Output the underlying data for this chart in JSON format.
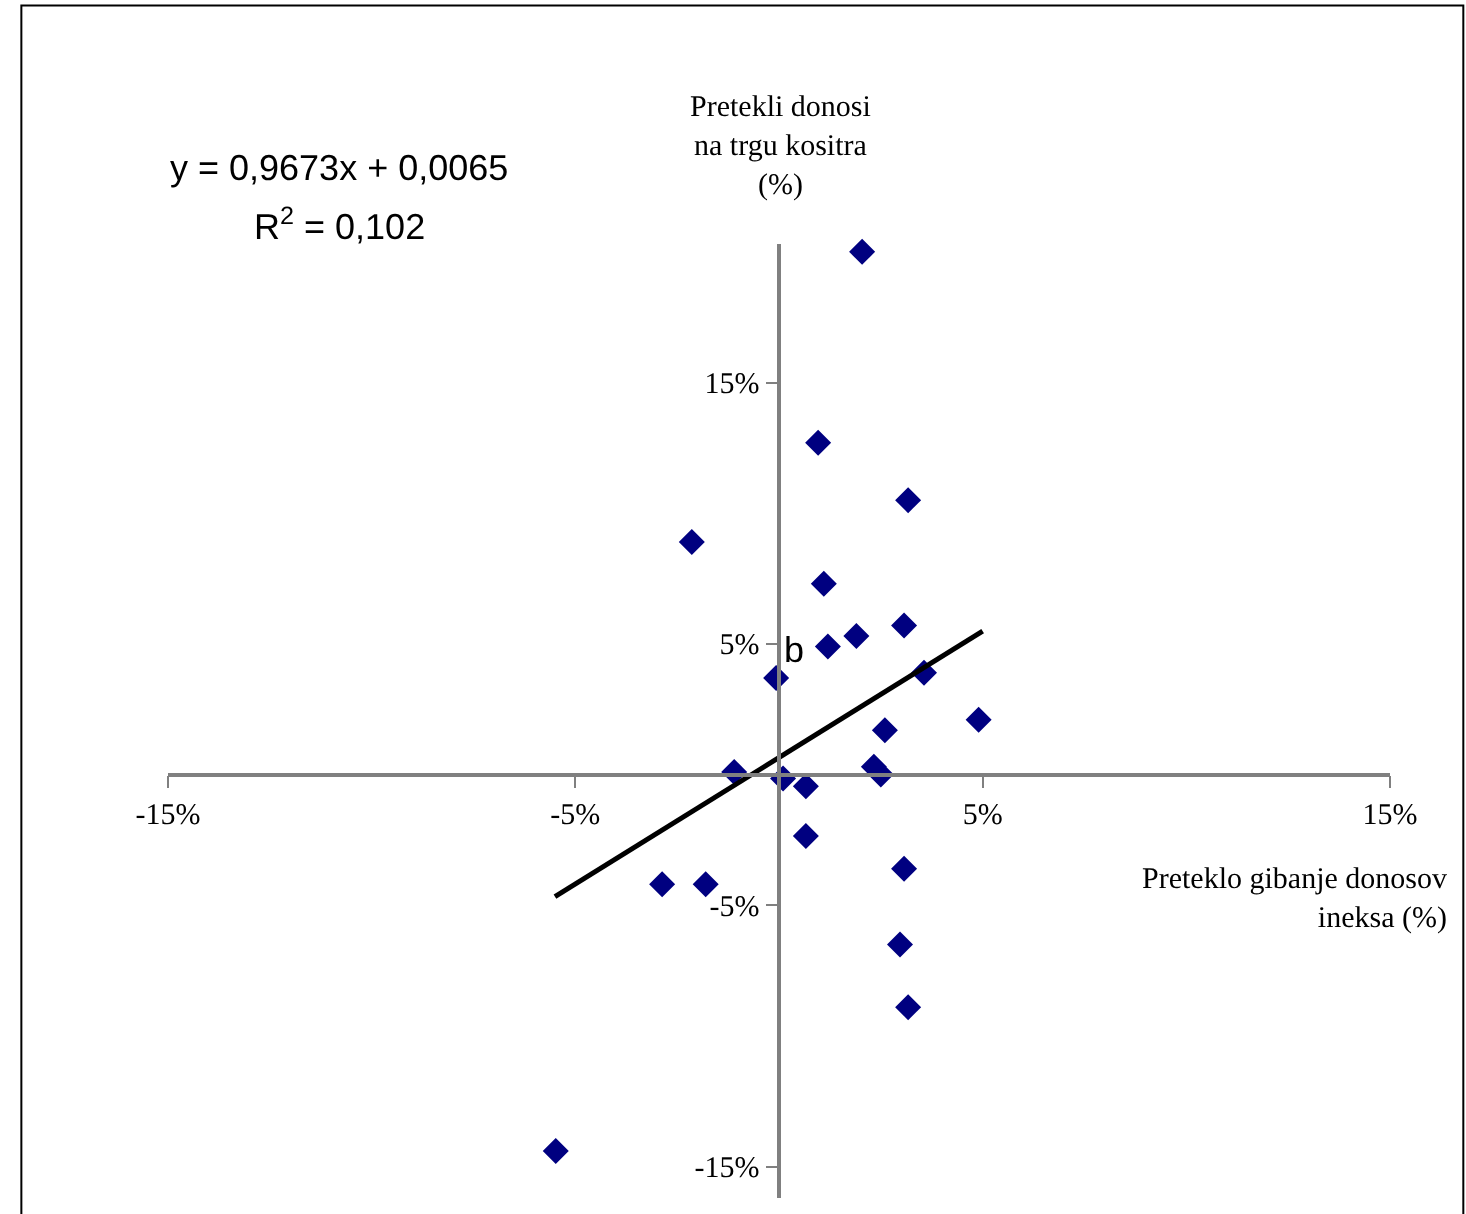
{
  "chart_data": {
    "type": "scatter",
    "xlabel": "Preteklo gibanje donosov\nineksa (%)",
    "ylabel": "Pretekli donosi\nna trgu kositra\n(%)",
    "annotations": [
      "y = 0,9673x + 0,0065",
      "R$^{2}$ = 0,102",
      "b"
    ],
    "xlim": [
      -15,
      15
    ],
    "xticks": [
      {
        "value": -15,
        "label": "-15%"
      },
      {
        "value": -5,
        "label": "-5%"
      },
      {
        "value": 5,
        "label": "5%"
      },
      {
        "value": 15,
        "label": "15%"
      }
    ],
    "ylim": [
      -16.2,
      20.3
    ],
    "yticks": [
      {
        "value": -15,
        "label": "-15%"
      },
      {
        "value": -5,
        "label": "-5%"
      },
      {
        "value": 5,
        "label": "5%"
      },
      {
        "value": 15,
        "label": "15%"
      }
    ],
    "series": [
      {
        "color": "#000080",
        "marker": "diamond",
        "x": [
          2.04,
          0.96,
          3.17,
          -2.14,
          1.1,
          3.07,
          1.9,
          1.2,
          3.56,
          -0.07,
          4.9,
          2.6,
          -1.1,
          2.33,
          2.5,
          0.1,
          0.66,
          0.66,
          3.07,
          -2.87,
          -1.8,
          2.97,
          3.17,
          -5.48
        ],
        "values": [
          20.0,
          12.7,
          10.5,
          8.9,
          7.3,
          5.7,
          5.3,
          4.9,
          3.9,
          3.7,
          2.1,
          1.7,
          0.1,
          0.3,
          0.0,
          -0.15,
          -0.45,
          -2.35,
          -3.6,
          -4.2,
          -4.2,
          -6.5,
          -8.9,
          -14.4
        ]
      },
      {
        "type": "line",
        "color": "#000000",
        "marker": "none",
        "line_style": "solid",
        "x": [
          -5.5,
          5.0
        ],
        "values": [
          -4.67,
          5.49
        ]
      }
    ]
  }
}
